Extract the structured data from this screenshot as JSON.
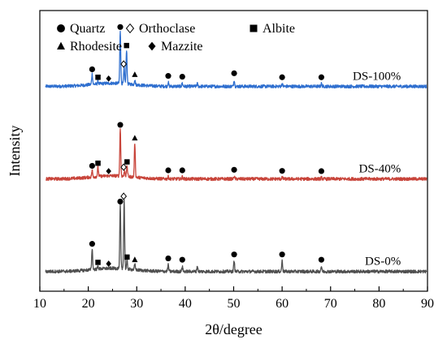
{
  "chart_data": {
    "type": "line",
    "xlabel": "2θ/degree",
    "ylabel": "Intensity",
    "xlim": [
      10,
      90
    ],
    "x_ticks": [
      10,
      20,
      30,
      40,
      50,
      60,
      70,
      80,
      90
    ],
    "y_ticks_shown": false,
    "grid": false,
    "legend_placement": "top-left",
    "legend": [
      {
        "label": "Quartz",
        "marker": "circle"
      },
      {
        "label": "Orthoclase",
        "marker": "open-diamond"
      },
      {
        "label": "Albite",
        "marker": "square"
      },
      {
        "label": "Rhodesite",
        "marker": "triangle"
      },
      {
        "label": "Mazzite",
        "marker": "diamond"
      }
    ],
    "series": [
      {
        "name": "DS-100%",
        "color": "#2f6fcf",
        "baseline": 0.75,
        "peaks": [
          {
            "x": 20.8,
            "h": 0.04
          },
          {
            "x": 22.0,
            "h": 0.01
          },
          {
            "x": 26.6,
            "h": 0.2
          },
          {
            "x": 27.4,
            "h": 0.06
          },
          {
            "x": 27.9,
            "h": 0.13
          },
          {
            "x": 29.6,
            "h": 0.02
          },
          {
            "x": 36.5,
            "h": 0.015
          },
          {
            "x": 39.4,
            "h": 0.012
          },
          {
            "x": 42.5,
            "h": 0.01
          },
          {
            "x": 50.1,
            "h": 0.025
          },
          {
            "x": 60.0,
            "h": 0.01
          },
          {
            "x": 68.1,
            "h": 0.01
          }
        ]
      },
      {
        "name": "DS-40%",
        "color": "#c8443a",
        "baseline": 0.4,
        "peaks": [
          {
            "x": 20.8,
            "h": 0.025
          },
          {
            "x": 22.0,
            "h": 0.035
          },
          {
            "x": 26.6,
            "h": 0.18
          },
          {
            "x": 27.5,
            "h": 0.02
          },
          {
            "x": 28.0,
            "h": 0.04
          },
          {
            "x": 29.6,
            "h": 0.13
          },
          {
            "x": 36.5,
            "h": 0.008
          },
          {
            "x": 39.4,
            "h": 0.008
          },
          {
            "x": 50.1,
            "h": 0.01
          },
          {
            "x": 60.0,
            "h": 0.006
          },
          {
            "x": 68.1,
            "h": 0.005
          }
        ]
      },
      {
        "name": "DS-0%",
        "color": "#505050",
        "baseline": 0.05,
        "peaks": [
          {
            "x": 20.8,
            "h": 0.08
          },
          {
            "x": 22.0,
            "h": 0.01
          },
          {
            "x": 26.6,
            "h": 0.24
          },
          {
            "x": 27.4,
            "h": 0.26
          },
          {
            "x": 28.0,
            "h": 0.03
          },
          {
            "x": 29.6,
            "h": 0.02
          },
          {
            "x": 36.5,
            "h": 0.025
          },
          {
            "x": 39.4,
            "h": 0.02
          },
          {
            "x": 42.5,
            "h": 0.02
          },
          {
            "x": 50.1,
            "h": 0.04
          },
          {
            "x": 60.0,
            "h": 0.04
          },
          {
            "x": 68.1,
            "h": 0.02
          }
        ]
      }
    ],
    "phase_markers": [
      {
        "series": "DS-100%",
        "items": [
          {
            "x": 20.8,
            "phase": "Quartz"
          },
          {
            "x": 22.0,
            "phase": "Albite"
          },
          {
            "x": 24.2,
            "phase": "Mazzite"
          },
          {
            "x": 26.6,
            "phase": "Quartz"
          },
          {
            "x": 27.3,
            "phase": "Orthoclase"
          },
          {
            "x": 27.9,
            "phase": "Albite"
          },
          {
            "x": 29.6,
            "phase": "Rhodesite"
          },
          {
            "x": 36.5,
            "phase": "Quartz"
          },
          {
            "x": 39.4,
            "phase": "Quartz"
          },
          {
            "x": 50.1,
            "phase": "Quartz"
          },
          {
            "x": 60.0,
            "phase": "Quartz"
          },
          {
            "x": 68.1,
            "phase": "Quartz"
          }
        ]
      },
      {
        "series": "DS-40%",
        "items": [
          {
            "x": 20.8,
            "phase": "Quartz"
          },
          {
            "x": 22.0,
            "phase": "Albite"
          },
          {
            "x": 24.2,
            "phase": "Mazzite"
          },
          {
            "x": 26.6,
            "phase": "Quartz"
          },
          {
            "x": 27.3,
            "phase": "Orthoclase"
          },
          {
            "x": 28.0,
            "phase": "Albite"
          },
          {
            "x": 29.6,
            "phase": "Rhodesite"
          },
          {
            "x": 36.5,
            "phase": "Quartz"
          },
          {
            "x": 39.4,
            "phase": "Quartz"
          },
          {
            "x": 50.1,
            "phase": "Quartz"
          },
          {
            "x": 60.0,
            "phase": "Quartz"
          },
          {
            "x": 68.1,
            "phase": "Quartz"
          }
        ]
      },
      {
        "series": "DS-0%",
        "items": [
          {
            "x": 20.8,
            "phase": "Quartz"
          },
          {
            "x": 22.0,
            "phase": "Albite"
          },
          {
            "x": 24.2,
            "phase": "Mazzite"
          },
          {
            "x": 26.6,
            "phase": "Quartz"
          },
          {
            "x": 27.3,
            "phase": "Orthoclase"
          },
          {
            "x": 28.0,
            "phase": "Albite"
          },
          {
            "x": 29.6,
            "phase": "Rhodesite"
          },
          {
            "x": 36.5,
            "phase": "Quartz"
          },
          {
            "x": 39.4,
            "phase": "Quartz"
          },
          {
            "x": 50.1,
            "phase": "Quartz"
          },
          {
            "x": 60.0,
            "phase": "Quartz"
          },
          {
            "x": 68.1,
            "phase": "Quartz"
          }
        ]
      }
    ]
  }
}
